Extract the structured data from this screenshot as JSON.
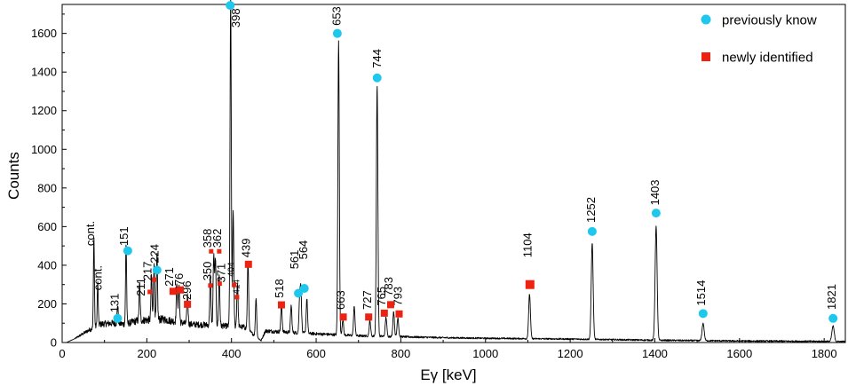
{
  "chart_data": {
    "type": "line",
    "title": "",
    "xlabel": "Eγ [keV]",
    "ylabel": "Counts",
    "xlim": [
      0,
      1850
    ],
    "ylim": [
      0,
      1750
    ],
    "x_ticks": [
      0,
      200,
      400,
      600,
      800,
      1000,
      1200,
      1400,
      1600,
      1800
    ],
    "y_ticks": [
      0,
      200,
      400,
      600,
      800,
      1000,
      1200,
      1400,
      1600
    ],
    "grid": false,
    "legend_position": "top-right",
    "colors": {
      "line": "#000000",
      "previously": "#1ec8ec",
      "newly": "#ee2211"
    },
    "legend": [
      {
        "marker": "circle",
        "label": "previously know"
      },
      {
        "marker": "square",
        "label": "newly identified"
      }
    ],
    "baseline": [
      [
        10,
        0
      ],
      [
        30,
        20
      ],
      [
        60,
        60
      ],
      [
        90,
        95
      ],
      [
        120,
        100
      ],
      [
        150,
        95
      ],
      [
        180,
        115
      ],
      [
        240,
        120
      ],
      [
        300,
        95
      ],
      [
        350,
        90
      ],
      [
        430,
        80
      ],
      [
        470,
        10
      ],
      [
        480,
        60
      ],
      [
        520,
        55
      ],
      [
        600,
        45
      ],
      [
        700,
        35
      ],
      [
        800,
        30
      ],
      [
        900,
        25
      ],
      [
        1000,
        22
      ],
      [
        1100,
        20
      ],
      [
        1200,
        18
      ],
      [
        1300,
        15
      ],
      [
        1400,
        12
      ],
      [
        1500,
        10
      ],
      [
        1600,
        8
      ],
      [
        1700,
        7
      ],
      [
        1800,
        6
      ],
      [
        1850,
        5
      ]
    ],
    "peaks": [
      {
        "energy": 75,
        "height": 470
      },
      {
        "energy": 84,
        "height": 220
      },
      {
        "energy": 131,
        "height": 100
      },
      {
        "energy": 151,
        "height": 420
      },
      {
        "energy": 183,
        "height": 190
      },
      {
        "energy": 211,
        "height": 230
      },
      {
        "energy": 217,
        "height": 290
      },
      {
        "energy": 224,
        "height": 330
      },
      {
        "energy": 271,
        "height": 210
      },
      {
        "energy": 276,
        "height": 200
      },
      {
        "energy": 296,
        "height": 150
      },
      {
        "energy": 350,
        "height": 250
      },
      {
        "energy": 358,
        "height": 360
      },
      {
        "energy": 362,
        "height": 350
      },
      {
        "energy": 371,
        "height": 260
      },
      {
        "energy": 398,
        "height": 1700
      },
      {
        "energy": 404,
        "height": 600
      },
      {
        "energy": 414,
        "height": 230
      },
      {
        "energy": 439,
        "height": 360
      },
      {
        "energy": 458,
        "height": 200
      },
      {
        "energy": 518,
        "height": 140
      },
      {
        "energy": 541,
        "height": 140
      },
      {
        "energy": 561,
        "height": 170
      },
      {
        "energy": 564,
        "height": 210
      },
      {
        "energy": 578,
        "height": 180
      },
      {
        "energy": 653,
        "height": 1520
      },
      {
        "energy": 663,
        "height": 80
      },
      {
        "energy": 690,
        "height": 150
      },
      {
        "energy": 727,
        "height": 80
      },
      {
        "energy": 744,
        "height": 1300
      },
      {
        "energy": 765,
        "height": 100
      },
      {
        "energy": 783,
        "height": 130
      },
      {
        "energy": 793,
        "height": 100
      },
      {
        "energy": 1104,
        "height": 230
      },
      {
        "energy": 1252,
        "height": 500
      },
      {
        "energy": 1403,
        "height": 590
      },
      {
        "energy": 1514,
        "height": 90
      },
      {
        "energy": 1821,
        "height": 80
      }
    ],
    "annotations": [
      {
        "text": "cont.",
        "x": 75,
        "y": 500,
        "size": "normal"
      },
      {
        "text": "cont.",
        "x": 93,
        "y": 270,
        "size": "normal"
      },
      {
        "text": "131",
        "x": 133,
        "y": 155,
        "size": "normal"
      },
      {
        "text": "151",
        "x": 155,
        "y": 500,
        "size": "normal"
      },
      {
        "text": "211",
        "x": 195,
        "y": 240,
        "size": "normal"
      },
      {
        "text": "217",
        "x": 211,
        "y": 320,
        "size": "normal"
      },
      {
        "text": "224",
        "x": 228,
        "y": 410,
        "size": "normal"
      },
      {
        "text": "271",
        "x": 262,
        "y": 290,
        "size": "normal"
      },
      {
        "text": "276",
        "x": 285,
        "y": 260,
        "size": "normal"
      },
      {
        "text": "296",
        "x": 304,
        "y": 220,
        "size": "normal"
      },
      {
        "text": "350",
        "x": 352,
        "y": 320,
        "size": "normal"
      },
      {
        "text": "358",
        "x": 352,
        "y": 490,
        "size": "normal"
      },
      {
        "text": "362",
        "x": 375,
        "y": 490,
        "size": "normal"
      },
      {
        "text": "371",
        "x": 385,
        "y": 310,
        "size": "normal"
      },
      {
        "text": "404",
        "x": 406,
        "y": 340,
        "size": "small"
      },
      {
        "text": "414",
        "x": 418,
        "y": 250,
        "size": "small"
      },
      {
        "text": "398",
        "x": 419,
        "y": 1630,
        "size": "normal"
      },
      {
        "text": "439",
        "x": 444,
        "y": 440,
        "size": "normal"
      },
      {
        "text": "518",
        "x": 522,
        "y": 230,
        "size": "normal"
      },
      {
        "text": "561",
        "x": 558,
        "y": 380,
        "size": "normal"
      },
      {
        "text": "564",
        "x": 579,
        "y": 430,
        "size": "normal"
      },
      {
        "text": "653",
        "x": 658,
        "y": 1640,
        "size": "normal"
      },
      {
        "text": "663",
        "x": 667,
        "y": 170,
        "size": "normal"
      },
      {
        "text": "727",
        "x": 730,
        "y": 170,
        "size": "normal"
      },
      {
        "text": "744",
        "x": 753,
        "y": 1420,
        "size": "normal"
      },
      {
        "text": "765",
        "x": 763,
        "y": 190,
        "size": "normal"
      },
      {
        "text": "783",
        "x": 780,
        "y": 240,
        "size": "normal"
      },
      {
        "text": "793",
        "x": 802,
        "y": 190,
        "size": "normal"
      },
      {
        "text": "1104",
        "x": 1109,
        "y": 440,
        "size": "normal"
      },
      {
        "text": "1252",
        "x": 1258,
        "y": 620,
        "size": "normal"
      },
      {
        "text": "1403",
        "x": 1409,
        "y": 710,
        "size": "normal"
      },
      {
        "text": "1514",
        "x": 1519,
        "y": 190,
        "size": "normal"
      },
      {
        "text": "1821",
        "x": 1827,
        "y": 170,
        "size": "normal"
      }
    ],
    "markers_previously": [
      {
        "x": 131,
        "y": 125
      },
      {
        "x": 155,
        "y": 475
      },
      {
        "x": 224,
        "y": 375
      },
      {
        "x": 397,
        "y": 1745
      },
      {
        "x": 558,
        "y": 255
      },
      {
        "x": 572,
        "y": 280
      },
      {
        "x": 650,
        "y": 1600
      },
      {
        "x": 744,
        "y": 1370
      },
      {
        "x": 1252,
        "y": 575
      },
      {
        "x": 1403,
        "y": 670
      },
      {
        "x": 1514,
        "y": 150
      },
      {
        "x": 1821,
        "y": 125
      }
    ],
    "markers_newly": [
      {
        "x": 207,
        "y": 262,
        "s": "small"
      },
      {
        "x": 217,
        "y": 325,
        "s": "small"
      },
      {
        "x": 262,
        "y": 265,
        "s": "normal"
      },
      {
        "x": 279,
        "y": 272,
        "s": "normal"
      },
      {
        "x": 296,
        "y": 198,
        "s": "normal"
      },
      {
        "x": 350,
        "y": 295,
        "s": "small"
      },
      {
        "x": 352,
        "y": 472,
        "s": "small"
      },
      {
        "x": 371,
        "y": 472,
        "s": "small"
      },
      {
        "x": 372,
        "y": 305,
        "s": "small"
      },
      {
        "x": 406,
        "y": 298,
        "s": "small"
      },
      {
        "x": 413,
        "y": 235,
        "s": "small"
      },
      {
        "x": 440,
        "y": 405,
        "s": "normal"
      },
      {
        "x": 518,
        "y": 195,
        "s": "normal"
      },
      {
        "x": 664,
        "y": 132,
        "s": "normal"
      },
      {
        "x": 724,
        "y": 132,
        "s": "normal"
      },
      {
        "x": 761,
        "y": 152,
        "s": "normal"
      },
      {
        "x": 776,
        "y": 196,
        "s": "normal"
      },
      {
        "x": 796,
        "y": 148,
        "s": "normal"
      },
      {
        "x": 1105,
        "y": 300,
        "s": "large"
      }
    ]
  }
}
